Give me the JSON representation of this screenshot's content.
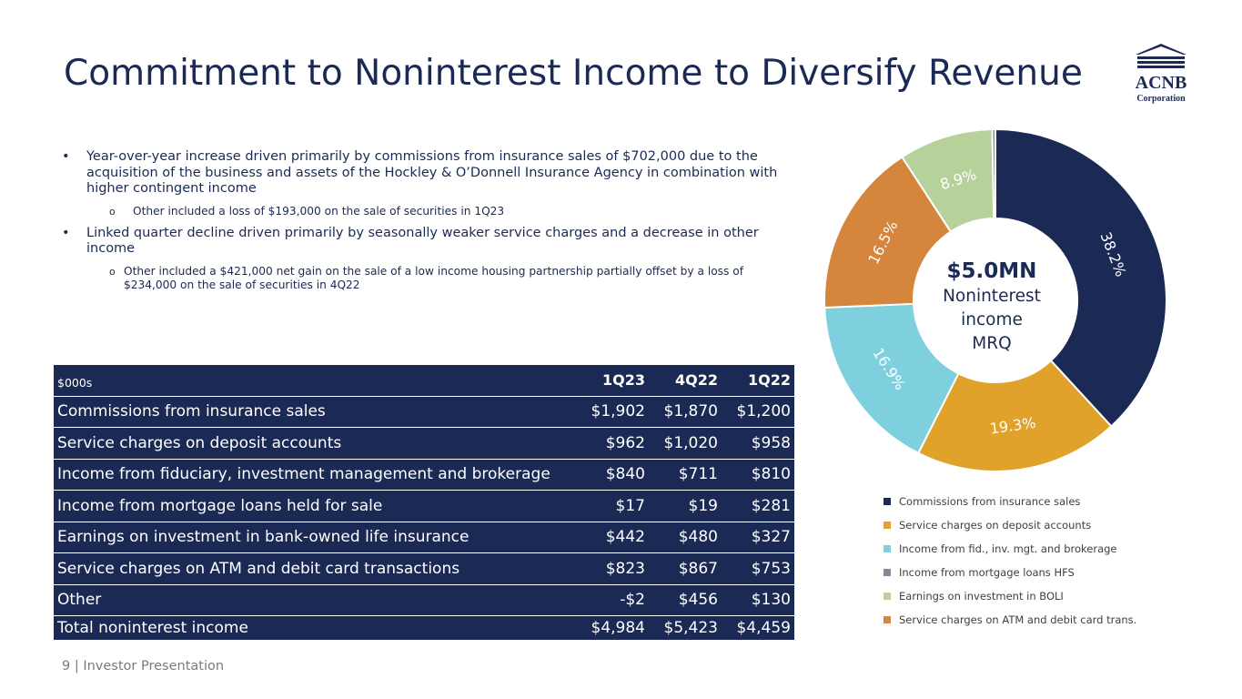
{
  "slide": {
    "title": "Commitment to Noninterest Income to Diversify Revenue",
    "footer": "9  | Investor Presentation",
    "logo_text_top": "ACNB",
    "logo_text_bottom": "Corporation"
  },
  "bullets": [
    {
      "text": "Year-over-year increase driven primarily by commissions from insurance sales of $702,000 due to the acquisition of the business and assets of the Hockley & O’Donnell Insurance Agency in combination with higher contingent income",
      "sub": "Other included a loss of $193,000 on the sale of securities in 1Q23"
    },
    {
      "text": "Linked quarter decline driven primarily by seasonally weaker service charges and a decrease in other income",
      "sub": "Other included a $421,000 net gain on the sale of a low income housing partnership partially offset by a loss of $234,000 on the sale of securities in 4Q22"
    }
  ],
  "bullet_glyph": "•",
  "sub_glyph": "o",
  "table": {
    "unit_label": "$000s",
    "columns": [
      "1Q23",
      "4Q22",
      "1Q22"
    ],
    "rows": [
      [
        "Commissions from insurance sales",
        "$1,902",
        "$1,870",
        "$1,200"
      ],
      [
        "Service charges on deposit accounts",
        "$962",
        "$1,020",
        "$958"
      ],
      [
        "Income from fiduciary, investment management and brokerage",
        "$840",
        "$711",
        "$810"
      ],
      [
        "Income from mortgage loans held for sale",
        "$17",
        "$19",
        "$281"
      ],
      [
        "Earnings on investment in bank-owned life insurance",
        "$442",
        "$480",
        "$327"
      ],
      [
        "Service charges on ATM and debit card transactions",
        "$823",
        "$867",
        "$753"
      ],
      [
        "Other",
        "-$2",
        "$456",
        "$130"
      ]
    ],
    "total": [
      "Total noninterest income",
      "$4,984",
      "$5,423",
      "$4,459"
    ]
  },
  "chart_data": {
    "type": "pie",
    "donut": true,
    "center_value": "$5.0MN",
    "center_label": [
      "Noninterest",
      "income",
      "MRQ"
    ],
    "categories": [
      "Commissions from insurance sales",
      "Service charges on deposit accounts",
      "Income from fid., inv. mgt. and brokerage",
      "Income from mortgage loans HFS",
      "Earnings on investment in BOLI",
      "Service charges on ATM and debit card trans."
    ],
    "values": [
      38.2,
      19.3,
      16.9,
      0.3,
      8.9,
      16.5
    ],
    "slice_order": [
      0,
      1,
      2,
      5,
      4,
      3
    ],
    "labels": [
      "38.2%",
      "19.3%",
      "16.9%",
      "",
      "8.9%",
      "16.5%"
    ],
    "colors": [
      "#1b2a55",
      "#e0a22a",
      "#7fd0df",
      "#7f8c97",
      "#b6d29a",
      "#d6853c"
    ],
    "legend_position": "bottom"
  }
}
